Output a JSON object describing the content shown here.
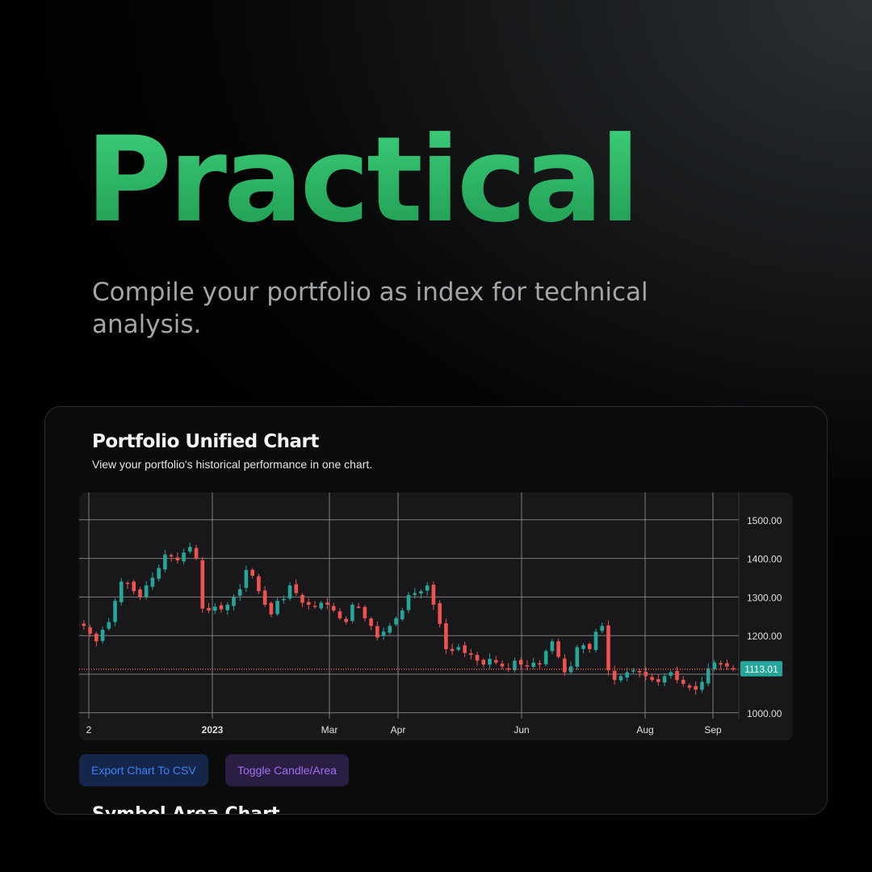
{
  "headline": "Practical",
  "tagline": "Compile your portfolio as index for technical analysis.",
  "card": {
    "title": "Portfolio Unified Chart",
    "subtitle": "View your portfolio's historical performance in one chart.",
    "buttons": {
      "export_label": "Export Chart To CSV",
      "toggle_label": "Toggle Candle/Area"
    },
    "next_section_title": "Symbol Area Chart"
  },
  "colors": {
    "headline": "#2fb868",
    "up_candle": "#26a69a",
    "down_candle": "#ef5350",
    "last_price": "#26a69a",
    "export_button_text": "#3b82f6",
    "toggle_button_text": "#a16ef0"
  },
  "chart_data": {
    "type": "candlestick",
    "y_ticks": [
      "1500.00",
      "1400.00",
      "1300.00",
      "1200.00",
      "1000.00"
    ],
    "x_ticks": [
      "2",
      "2023",
      "Mar",
      "Apr",
      "Jun",
      "Aug",
      "Sep"
    ],
    "ylim": [
      1000,
      1500
    ],
    "last_price": 1113.01,
    "last_price_label": "1113.01",
    "close_series": [
      1225,
      1205,
      1185,
      1215,
      1235,
      1290,
      1340,
      1335,
      1315,
      1300,
      1330,
      1350,
      1375,
      1410,
      1405,
      1395,
      1415,
      1430,
      1400,
      1270,
      1265,
      1275,
      1268,
      1280,
      1300,
      1320,
      1370,
      1355,
      1315,
      1280,
      1255,
      1290,
      1295,
      1330,
      1310,
      1285,
      1280,
      1275,
      1285,
      1280,
      1265,
      1245,
      1235,
      1280,
      1275,
      1245,
      1225,
      1195,
      1210,
      1225,
      1245,
      1265,
      1305,
      1310,
      1315,
      1330,
      1280,
      1230,
      1165,
      1160,
      1170,
      1155,
      1150,
      1135,
      1125,
      1140,
      1130,
      1120,
      1115,
      1135,
      1125,
      1120,
      1130,
      1125,
      1160,
      1185,
      1145,
      1105,
      1120,
      1170,
      1175,
      1165,
      1210,
      1225,
      1110,
      1085,
      1095,
      1105,
      1110,
      1105,
      1095,
      1085,
      1080,
      1095,
      1105,
      1085,
      1075,
      1065,
      1060,
      1080,
      1115,
      1130,
      1125,
      1120,
      1113
    ]
  }
}
